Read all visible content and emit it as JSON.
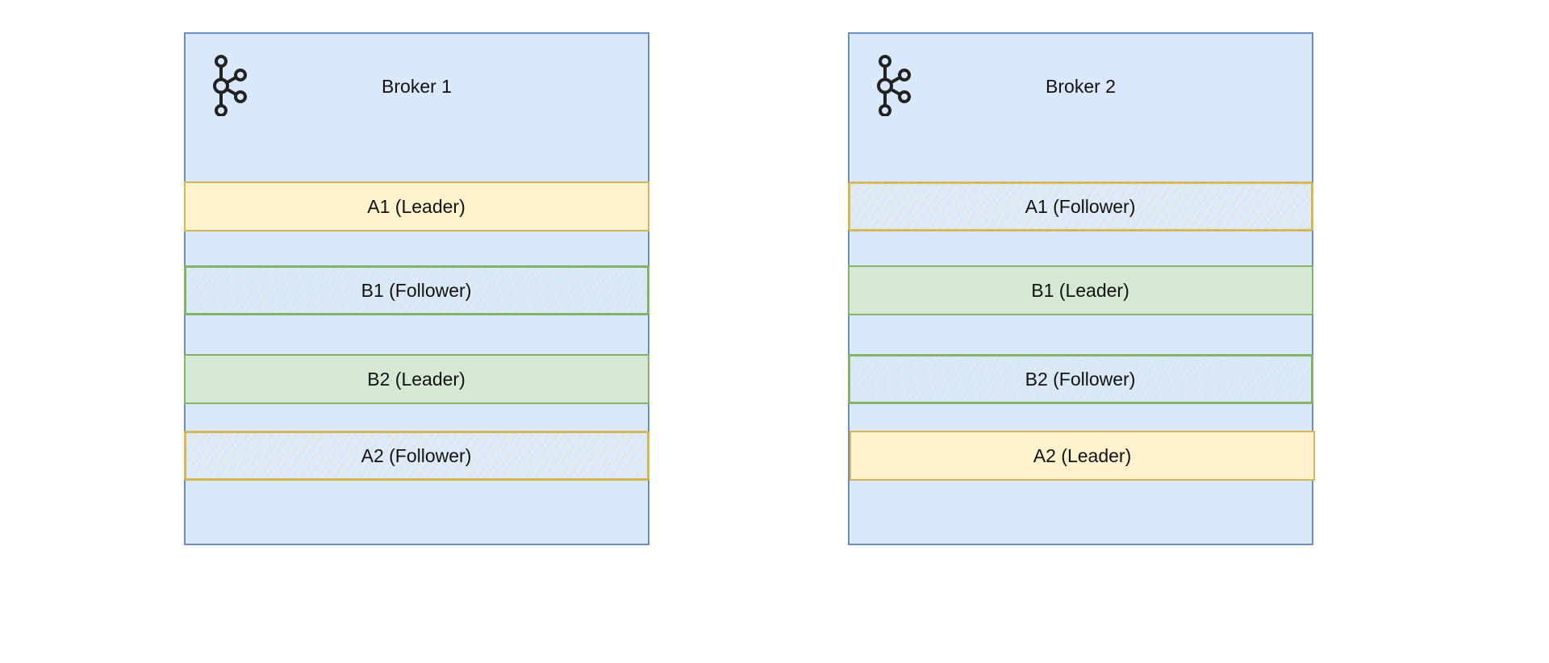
{
  "brokers": [
    {
      "title": "Broker 1",
      "icon": "kafka-icon",
      "partitions": [
        {
          "label": "A1 (Leader)",
          "role": "leader",
          "topic": "A"
        },
        {
          "label": "B1 (Follower)",
          "role": "follower",
          "topic": "B"
        },
        {
          "label": "B2 (Leader)",
          "role": "leader",
          "topic": "B"
        },
        {
          "label": "A2 (Follower)",
          "role": "follower",
          "topic": "A"
        }
      ]
    },
    {
      "title": "Broker 2",
      "icon": "kafka-icon",
      "partitions": [
        {
          "label": "A1 (Follower)",
          "role": "follower",
          "topic": "A"
        },
        {
          "label": "B1 (Leader)",
          "role": "leader",
          "topic": "B"
        },
        {
          "label": "B2 (Follower)",
          "role": "follower",
          "topic": "B"
        },
        {
          "label": "A2 (Leader)",
          "role": "leader",
          "topic": "A"
        }
      ]
    }
  ],
  "colors": {
    "broker_fill": "#dae8fc",
    "broker_stroke": "#6c8ebf",
    "topic_a_fill": "#fff2cc",
    "topic_a_stroke": "#d6b656",
    "topic_b_fill": "#d5e8d4",
    "topic_b_stroke": "#82b366"
  }
}
